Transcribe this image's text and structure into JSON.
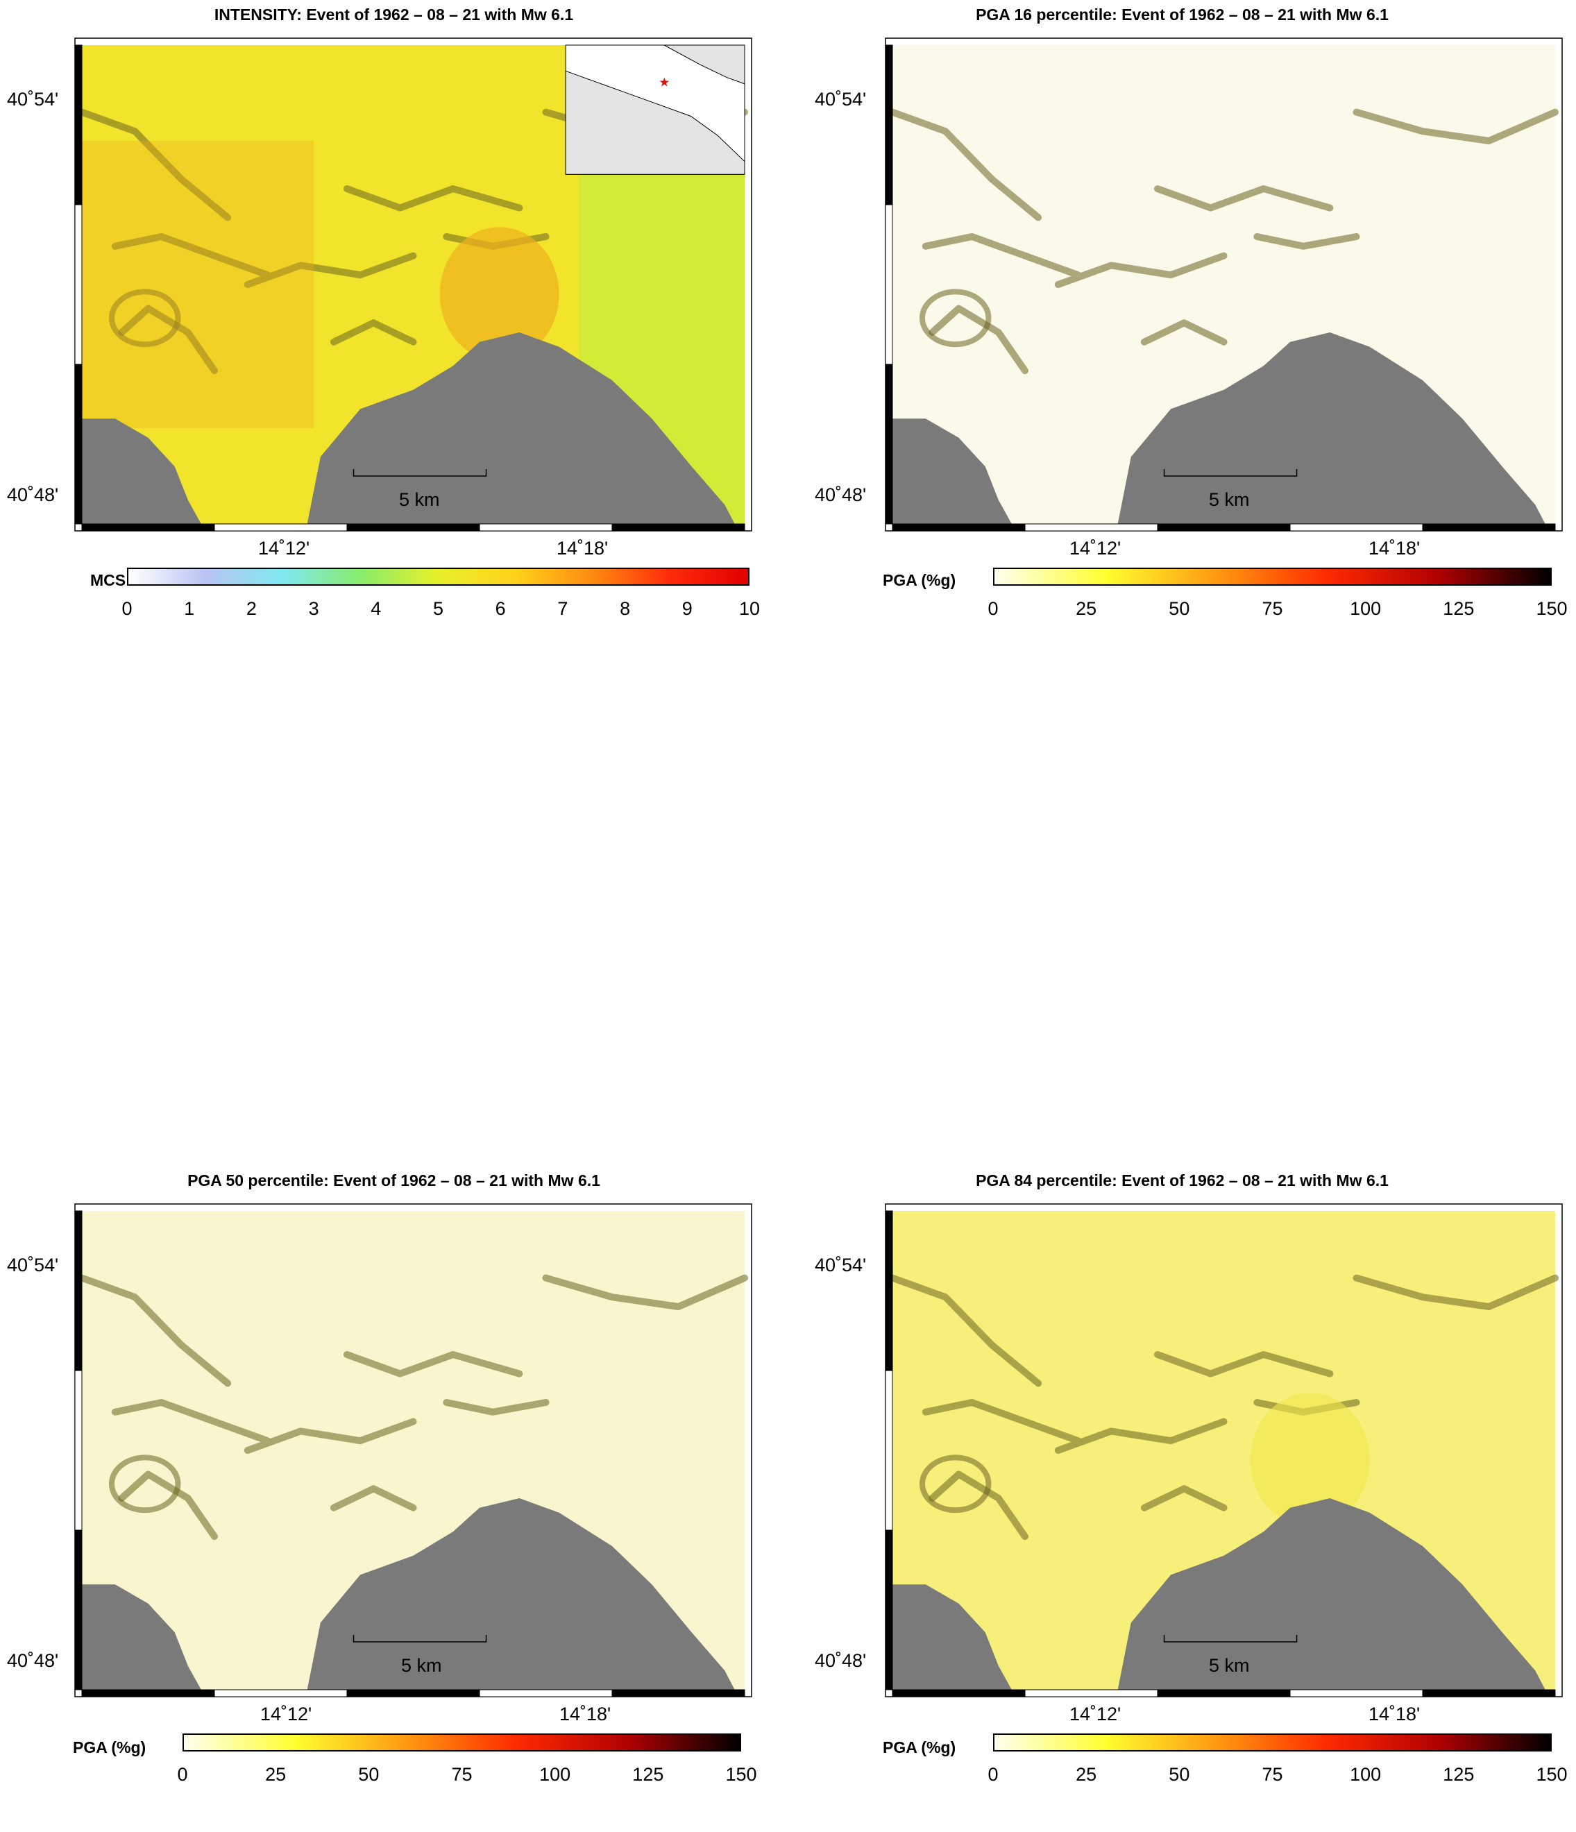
{
  "colors": {
    "sea": "#7a7a7a",
    "mcs_scale": [
      "#ffffff",
      "#b8c4f2",
      "#7fe8f0",
      "#88ec6a",
      "#e8f02a",
      "#ffd21a",
      "#ff8a10",
      "#ff2a0a",
      "#e00000"
    ],
    "pga_scale": [
      "#fffff0",
      "#ffff30",
      "#ff9a10",
      "#ff2a00",
      "#b00000",
      "#000000"
    ]
  },
  "panels": [
    {
      "title": "INTENSITY: Event of 1962 – 08 – 21 with Mw 6.1",
      "lat_labels": [
        "40˚54'",
        "40˚48'"
      ],
      "lon_labels": [
        "14˚12'",
        "14˚18'"
      ],
      "scale_bar": "5 km",
      "colorbar": {
        "label": "MCS",
        "ticks": [
          "0",
          "1",
          "2",
          "3",
          "4",
          "5",
          "6",
          "7",
          "8",
          "9",
          "10"
        ]
      },
      "inset_map": true,
      "dominant_fill": "#f2e42a"
    },
    {
      "title": "PGA 16 percentile: Event of 1962 – 08 – 21 with Mw 6.1",
      "lat_labels": [
        "40˚54'",
        "40˚48'"
      ],
      "lon_labels": [
        "14˚12'",
        "14˚18'"
      ],
      "scale_bar": "5 km",
      "colorbar": {
        "label": "PGA (%g)",
        "ticks": [
          "0",
          "25",
          "50",
          "75",
          "100",
          "125",
          "150"
        ]
      },
      "dominant_fill": "#fbfaea"
    },
    {
      "title": "PGA 50 percentile: Event of 1962 – 08 – 21 with Mw 6.1",
      "lat_labels": [
        "40˚54'",
        "40˚48'"
      ],
      "lon_labels": [
        "14˚12'",
        "14˚18'"
      ],
      "scale_bar": "5 km",
      "colorbar": {
        "label": "PGA (%g)",
        "ticks": [
          "0",
          "25",
          "50",
          "75",
          "100",
          "125",
          "150"
        ]
      },
      "dominant_fill": "#f9f6cf"
    },
    {
      "title": "PGA 84 percentile: Event of 1962 – 08 – 21 with Mw 6.1",
      "lat_labels": [
        "40˚54'",
        "40˚48'"
      ],
      "lon_labels": [
        "14˚12'",
        "14˚18'"
      ],
      "scale_bar": "5 km",
      "colorbar": {
        "label": "PGA (%g)",
        "ticks": [
          "0",
          "25",
          "50",
          "75",
          "100",
          "125",
          "150"
        ]
      },
      "dominant_fill": "#f6f07a"
    }
  ]
}
